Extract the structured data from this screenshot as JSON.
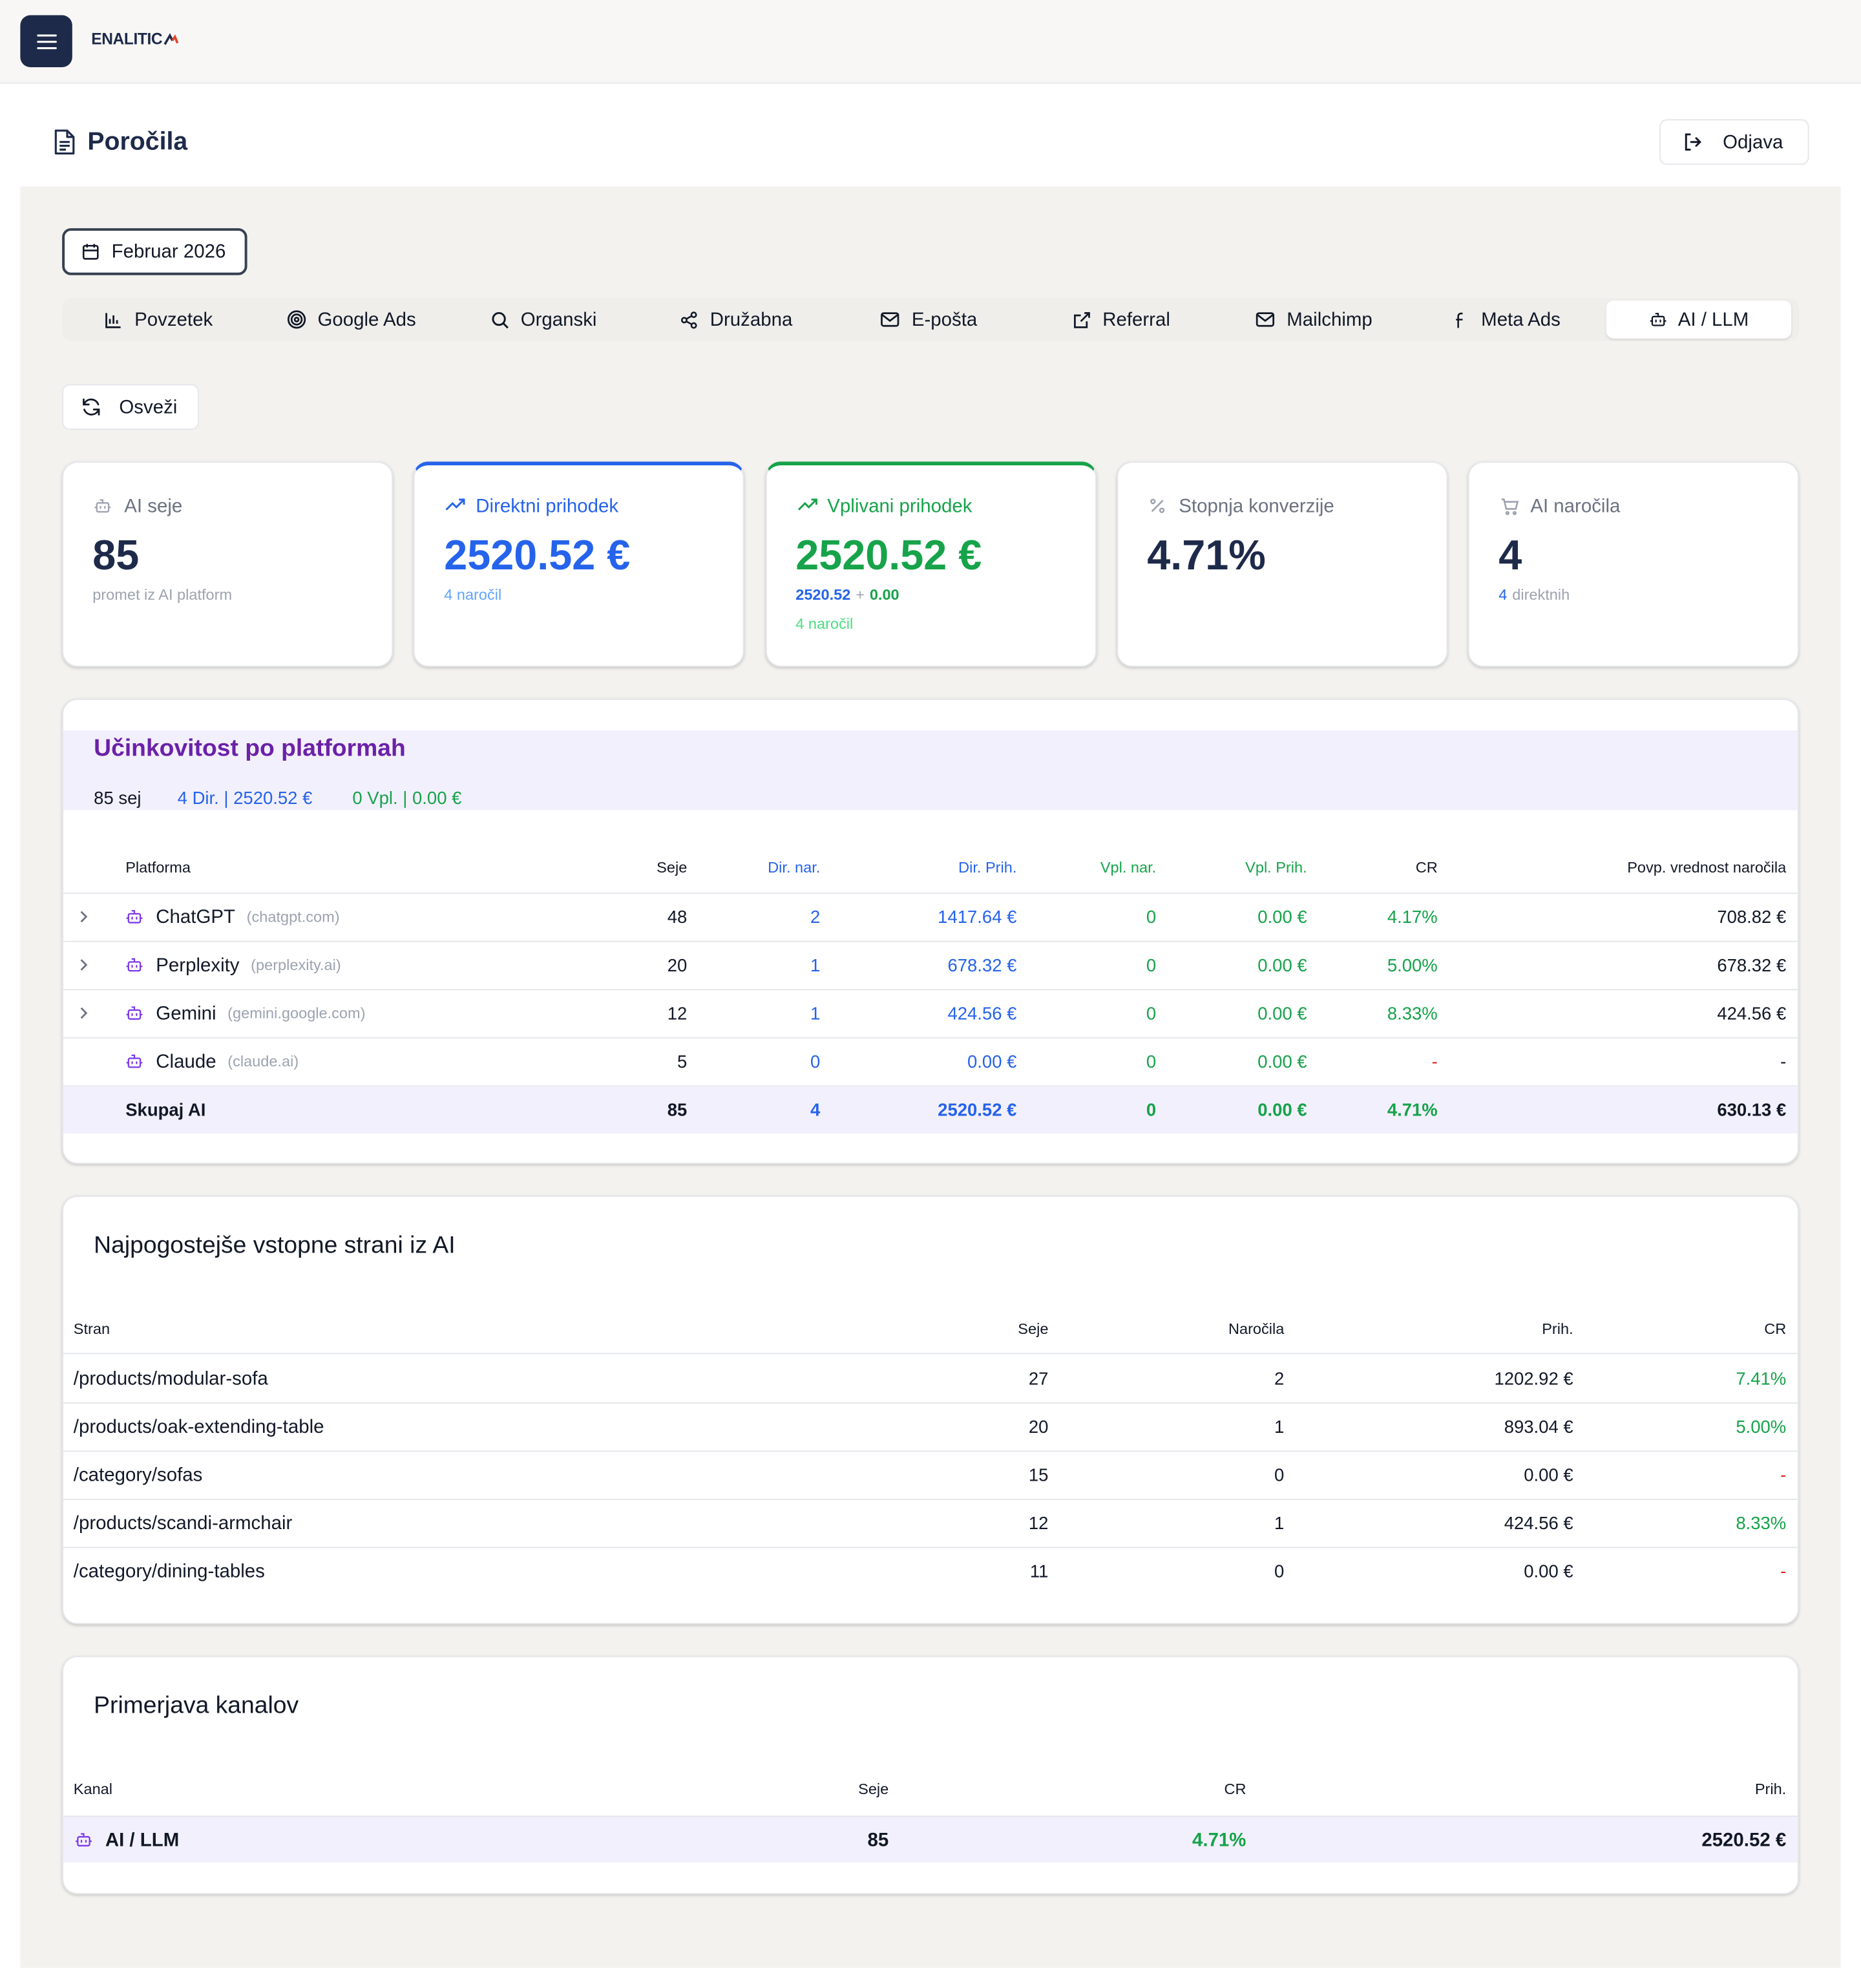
{
  "header": {
    "logo": "ENALITIC"
  },
  "page": {
    "title": "Poročila",
    "logout": "Odjava",
    "date": "Februar 2026",
    "refresh": "Osveži"
  },
  "tabs": [
    "Povzetek",
    "Google Ads",
    "Organski",
    "Družabna",
    "E-pošta",
    "Referral",
    "Mailchimp",
    "Meta Ads",
    "AI / LLM"
  ],
  "active_tab": 8,
  "kpis": [
    {
      "label": "AI seje",
      "value": "85",
      "accent": null,
      "value_color": "#1e2a4a",
      "label_color": "#6b7280",
      "lines": [
        [
          {
            "text": "promet iz AI platform",
            "color": "#9ca3af"
          }
        ]
      ]
    },
    {
      "label": "Direktni prihodek",
      "value": "2520.52 €",
      "accent": "#2563eb",
      "value_color": "#2563eb",
      "label_color": "#2563eb",
      "lines": [
        [
          {
            "text": "4 naročil",
            "color": "#60a5fa"
          }
        ]
      ]
    },
    {
      "label": "Vplivani prihodek",
      "value": "2520.52 €",
      "accent": "#16a34a",
      "value_color": "#16a34a",
      "label_color": "#16a34a",
      "lines": [
        [
          {
            "text": "2520.52",
            "color": "#2563eb"
          },
          {
            "text": "+",
            "color": "#9ca3af"
          },
          {
            "text": "0.00",
            "color": "#16a34a"
          }
        ],
        [
          {
            "text": "4 naročil",
            "color": "#4ade80"
          }
        ]
      ]
    },
    {
      "label": "Stopnja konverzije",
      "value": "4.71%",
      "accent": null,
      "value_color": "#1e2a4a",
      "label_color": "#6b7280",
      "lines": []
    },
    {
      "label": "AI naročila",
      "value": "4",
      "accent": null,
      "value_color": "#1e2a4a",
      "label_color": "#6b7280",
      "lines": [
        [
          {
            "text": "4",
            "color": "#2563eb"
          },
          {
            "text": "direktnih",
            "color": "#9ca3af"
          }
        ]
      ]
    }
  ],
  "platforms": {
    "title": "Učinkovitost po platformah",
    "summary": [
      {
        "text": "85 sej",
        "color": "#111827"
      },
      {
        "text": "4 Dir. | 2520.52 €",
        "color": "#2563eb"
      },
      {
        "text": "0 Vpl. | 0.00 €",
        "color": "#16a34a"
      }
    ],
    "columns": [
      {
        "label": "Platforma",
        "color": "#111827"
      },
      {
        "label": "Seje",
        "color": "#111827"
      },
      {
        "label": "Dir. nar.",
        "color": "#2563eb"
      },
      {
        "label": "Dir. Prih.",
        "color": "#2563eb"
      },
      {
        "label": "Vpl. nar.",
        "color": "#16a34a"
      },
      {
        "label": "Vpl. Prih.",
        "color": "#16a34a"
      },
      {
        "label": "CR",
        "color": "#111827"
      },
      {
        "label": "Povp. vrednost naročila",
        "color": "#111827"
      }
    ],
    "cell_colors": [
      "#111827",
      "#2563eb",
      "#2563eb",
      "#16a34a",
      "#16a34a",
      "#16a34a",
      "#111827"
    ],
    "rows": [
      {
        "name": "ChatGPT",
        "domain": "(chatgpt.com)",
        "expandable": true,
        "cells": [
          "48",
          "2",
          "1417.64 €",
          "0",
          "0.00 €",
          "4.17%",
          "708.82 €"
        ]
      },
      {
        "name": "Perplexity",
        "domain": "(perplexity.ai)",
        "expandable": true,
        "cells": [
          "20",
          "1",
          "678.32 €",
          "0",
          "0.00 €",
          "5.00%",
          "678.32 €"
        ]
      },
      {
        "name": "Gemini",
        "domain": "(gemini.google.com)",
        "expandable": true,
        "cells": [
          "12",
          "1",
          "424.56 €",
          "0",
          "0.00 €",
          "8.33%",
          "424.56 €"
        ]
      },
      {
        "name": "Claude",
        "domain": "(claude.ai)",
        "expandable": false,
        "cells": [
          "5",
          "0",
          "0.00 €",
          "0",
          "0.00 €",
          "-",
          "-"
        ]
      }
    ],
    "total": {
      "name": "Skupaj AI",
      "cells": [
        "85",
        "4",
        "2520.52 €",
        "0",
        "0.00 €",
        "4.71%",
        "630.13 €"
      ]
    }
  },
  "entry_pages": {
    "title": "Najpogostejše vstopne strani iz AI",
    "columns": [
      "Stran",
      "Seje",
      "Naročila",
      "Prih.",
      "CR"
    ],
    "rows": [
      [
        "/products/modular-sofa",
        "27",
        "2",
        "1202.92 €",
        "7.41%"
      ],
      [
        "/products/oak-extending-table",
        "20",
        "1",
        "893.04 €",
        "5.00%"
      ],
      [
        "/category/sofas",
        "15",
        "0",
        "0.00 €",
        "-"
      ],
      [
        "/products/scandi-armchair",
        "12",
        "1",
        "424.56 €",
        "8.33%"
      ],
      [
        "/category/dining-tables",
        "11",
        "0",
        "0.00 €",
        "-"
      ]
    ]
  },
  "channels": {
    "title": "Primerjava kanalov",
    "columns": [
      "Kanal",
      "Seje",
      "CR",
      "Prih."
    ],
    "rows": [
      [
        "AI / LLM",
        "85",
        "4.71%",
        "2520.52 €"
      ]
    ]
  }
}
